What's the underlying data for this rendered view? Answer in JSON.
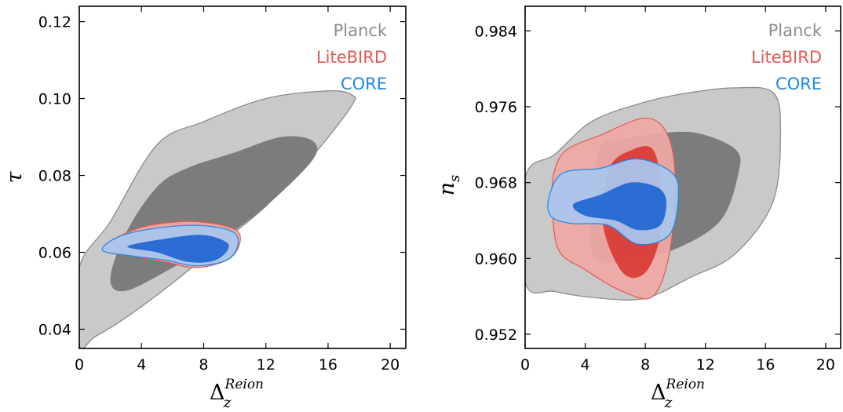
{
  "chart_data": [
    {
      "type": "contour",
      "xlabel": "Δ",
      "xlabel_sub": "z",
      "xlabel_sup": "Reion",
      "ylabel": "τ",
      "ylabel_sub": "",
      "xlim": [
        0,
        21
      ],
      "ylim": [
        0.035,
        0.124
      ],
      "xticks": [
        0,
        4,
        8,
        12,
        16,
        20
      ],
      "xtick_labels": [
        "0",
        "4",
        "8",
        "12",
        "16",
        "20"
      ],
      "yticks": [
        0.04,
        0.06,
        0.08,
        0.1,
        0.12
      ],
      "ytick_labels": [
        "0.04",
        "0.06",
        "0.08",
        "0.10",
        "0.12"
      ],
      "legend_position": "top-right",
      "series": [
        {
          "name": "Planck",
          "color": "#8c8c8c",
          "outer_color": "#c9c9c9",
          "inner_color": "#7c7c7c",
          "outer": [
            [
              0,
              0.036
            ],
            [
              0,
              0.056
            ],
            [
              2,
              0.068
            ],
            [
              5,
              0.088
            ],
            [
              8,
              0.094
            ],
            [
              12,
              0.1
            ],
            [
              16,
              0.102
            ],
            [
              17.5,
              0.101
            ],
            [
              17.5,
              0.098
            ],
            [
              15,
              0.085
            ],
            [
              12,
              0.072
            ],
            [
              9,
              0.062
            ],
            [
              6,
              0.052
            ],
            [
              3,
              0.043
            ],
            [
              1,
              0.038
            ]
          ],
          "inner": [
            [
              2,
              0.053
            ],
            [
              3,
              0.065
            ],
            [
              5,
              0.077
            ],
            [
              7,
              0.082
            ],
            [
              10,
              0.086
            ],
            [
              13,
              0.09
            ],
            [
              15,
              0.089
            ],
            [
              15,
              0.084
            ],
            [
              12,
              0.072
            ],
            [
              9,
              0.063
            ],
            [
              6,
              0.056
            ],
            [
              3,
              0.05
            ]
          ]
        },
        {
          "name": "LiteBIRD",
          "color": "#e05a52",
          "outer_color": "#f0a9a4",
          "inner_color": "#d93a34",
          "outer": [
            [
              1.6,
              0.0605
            ],
            [
              2.5,
              0.064
            ],
            [
              4.5,
              0.067
            ],
            [
              7.5,
              0.068
            ],
            [
              10,
              0.066
            ],
            [
              10.3,
              0.062
            ],
            [
              9.5,
              0.058
            ],
            [
              7.5,
              0.056
            ],
            [
              5.5,
              0.0575
            ],
            [
              3.5,
              0.059
            ]
          ],
          "inner": [
            [
              3.2,
              0.0615
            ],
            [
              5.5,
              0.0635
            ],
            [
              8,
              0.0645
            ],
            [
              9.7,
              0.062
            ],
            [
              8.8,
              0.058
            ],
            [
              7,
              0.0575
            ],
            [
              5,
              0.06
            ]
          ]
        },
        {
          "name": "CORE",
          "color": "#1e88e5",
          "outer_color": "#a9c7f0",
          "inner_color": "#1f66d0",
          "outer": [
            [
              1.5,
              0.0605
            ],
            [
              2.5,
              0.064
            ],
            [
              4.5,
              0.066
            ],
            [
              7.5,
              0.067
            ],
            [
              9.8,
              0.0655
            ],
            [
              10.2,
              0.062
            ],
            [
              9.5,
              0.058
            ],
            [
              7.5,
              0.0565
            ],
            [
              5.5,
              0.058
            ],
            [
              3.5,
              0.059
            ]
          ],
          "inner": [
            [
              3.1,
              0.0615
            ],
            [
              5.5,
              0.0635
            ],
            [
              8,
              0.0645
            ],
            [
              9.6,
              0.062
            ],
            [
              8.8,
              0.058
            ],
            [
              7,
              0.0575
            ],
            [
              5,
              0.06
            ]
          ]
        }
      ]
    },
    {
      "type": "contour",
      "xlabel": "Δ",
      "xlabel_sub": "z",
      "xlabel_sup": "Reion",
      "ylabel": "n",
      "ylabel_sub": "s",
      "xlim": [
        0,
        21
      ],
      "ylim": [
        0.9505,
        0.9866
      ],
      "xticks": [
        0,
        4,
        8,
        12,
        16,
        20
      ],
      "xtick_labels": [
        "0",
        "4",
        "8",
        "12",
        "16",
        "20"
      ],
      "yticks": [
        0.952,
        0.96,
        0.968,
        0.976,
        0.984
      ],
      "ytick_labels": [
        "0.952",
        "0.960",
        "0.968",
        "0.976",
        "0.984"
      ],
      "legend_position": "top-right",
      "series": [
        {
          "name": "Planck",
          "color": "#8c8c8c",
          "outer_color": "#c9c9c9",
          "inner_color": "#7c7c7c",
          "outer": [
            [
              0,
              0.9575
            ],
            [
              0,
              0.9685
            ],
            [
              2,
              0.971
            ],
            [
              4.5,
              0.9745
            ],
            [
              8,
              0.9765
            ],
            [
              11,
              0.9775
            ],
            [
              14,
              0.978
            ],
            [
              16.5,
              0.9775
            ],
            [
              17,
              0.9735
            ],
            [
              16.5,
              0.966
            ],
            [
              14,
              0.9605
            ],
            [
              11,
              0.958
            ],
            [
              8,
              0.9558
            ],
            [
              5,
              0.9558
            ],
            [
              2,
              0.9565
            ]
          ],
          "inner": [
            [
              4.5,
              0.9605
            ],
            [
              4.8,
              0.971
            ],
            [
              6.5,
              0.9725
            ],
            [
              9,
              0.9732
            ],
            [
              11.5,
              0.9732
            ],
            [
              14,
              0.9715
            ],
            [
              14.2,
              0.969
            ],
            [
              13,
              0.964
            ],
            [
              10,
              0.961
            ],
            [
              7,
              0.96
            ]
          ]
        },
        {
          "name": "LiteBIRD",
          "color": "#e05a52",
          "outer_color": "#f0a9a4",
          "inner_color": "#d93a34",
          "outer": [
            [
              2,
              0.9695
            ],
            [
              2.8,
              0.9715
            ],
            [
              5,
              0.973
            ],
            [
              8,
              0.9748
            ],
            [
              9.5,
              0.973
            ],
            [
              10,
              0.968
            ],
            [
              9.6,
              0.9605
            ],
            [
              8.5,
              0.956
            ],
            [
              6.5,
              0.9565
            ],
            [
              4,
              0.9588
            ],
            [
              2.2,
              0.961
            ],
            [
              1.8,
              0.9665
            ]
          ],
          "inner": [
            [
              5.2,
              0.9635
            ],
            [
              5.6,
              0.9695
            ],
            [
              7.2,
              0.9715
            ],
            [
              8.5,
              0.9715
            ],
            [
              9,
              0.968
            ],
            [
              9,
              0.9625
            ],
            [
              8,
              0.9585
            ],
            [
              6.5,
              0.9585
            ]
          ]
        },
        {
          "name": "CORE",
          "color": "#1e88e5",
          "outer_color": "#a9c7f0",
          "inner_color": "#1f66d0",
          "outer": [
            [
              1.6,
              0.9665
            ],
            [
              2.5,
              0.969
            ],
            [
              5,
              0.9695
            ],
            [
              7.5,
              0.9705
            ],
            [
              9.8,
              0.969
            ],
            [
              10.2,
              0.9665
            ],
            [
              9.6,
              0.9625
            ],
            [
              7.5,
              0.9615
            ],
            [
              5.5,
              0.9635
            ],
            [
              3,
              0.9637
            ],
            [
              1.7,
              0.9645
            ]
          ],
          "inner": [
            [
              3.2,
              0.9657
            ],
            [
              5,
              0.9667
            ],
            [
              7,
              0.968
            ],
            [
              8.8,
              0.9675
            ],
            [
              9.4,
              0.966
            ],
            [
              9,
              0.9635
            ],
            [
              7.5,
              0.963
            ],
            [
              6,
              0.964
            ],
            [
              4,
              0.9645
            ]
          ]
        }
      ]
    }
  ]
}
